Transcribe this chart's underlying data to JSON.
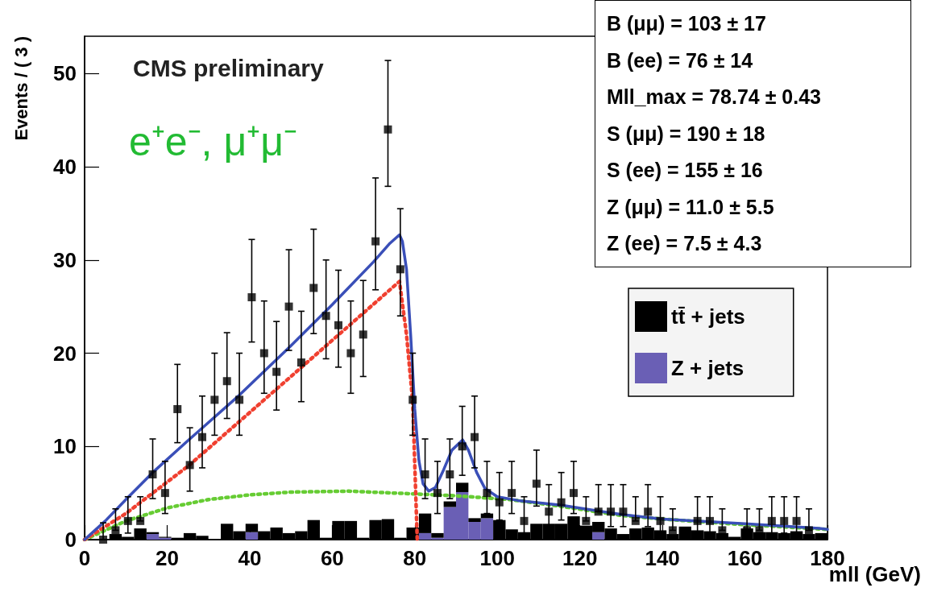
{
  "chart_data": {
    "type": "bar",
    "xlabel": "mll (GeV)",
    "ylabel": "Events / ( 3 )",
    "annotations": [
      "CMS preliminary",
      "e⁺e⁻, μ⁺μ⁻",
      "B (μμ) =  103 ± 17",
      "B (ee) =  76 ± 14",
      "Mll_max =  78.74 ± 0.43",
      "S (μμ) =  190 ± 18",
      "S (ee) =  155 ± 16",
      "Z (μμ) =  11.0 ± 5.5",
      "Z (ee) =  7.5 ± 4.3"
    ],
    "xlim": [
      0,
      180
    ],
    "xticks": [
      0,
      20,
      40,
      60,
      80,
      100,
      120,
      140,
      160,
      180
    ],
    "ylim": [
      0,
      54
    ],
    "yticks": [
      0,
      10,
      20,
      30,
      40,
      50
    ],
    "stacked": true,
    "legend": "right",
    "x": [
      1.5,
      4.5,
      7.5,
      10.5,
      13.5,
      16.5,
      19.5,
      22.5,
      25.5,
      28.5,
      31.5,
      34.5,
      37.5,
      40.5,
      43.5,
      46.5,
      49.5,
      52.5,
      55.5,
      58.5,
      61.5,
      64.5,
      67.5,
      70.5,
      73.5,
      76.5,
      79.5,
      82.5,
      85.5,
      88.5,
      91.5,
      94.5,
      97.5,
      100.5,
      103.5,
      106.5,
      109.5,
      112.5,
      115.5,
      118.5,
      121.5,
      124.5,
      127.5,
      130.5,
      133.5,
      136.5,
      139.5,
      142.5,
      145.5,
      148.5,
      151.5,
      154.5,
      157.5,
      160.5,
      163.5,
      166.5,
      169.5,
      172.5,
      175.5,
      178.5
    ],
    "series": [
      {
        "name": "Z + jets",
        "color": "#6a5fb5",
        "values": [
          0,
          0,
          0,
          0,
          0,
          0.6,
          0.2,
          0,
          0,
          0,
          0,
          0,
          0,
          0.8,
          0,
          0,
          0,
          0,
          0,
          0,
          0,
          0,
          0,
          0,
          0,
          0,
          0,
          0.7,
          0.2,
          3.5,
          5.1,
          1.9,
          2.3,
          0,
          0,
          0,
          0,
          0,
          0,
          0,
          0,
          0.8,
          0,
          0,
          0,
          0,
          0,
          0,
          0,
          0,
          0,
          0,
          0,
          0,
          0,
          0,
          0,
          0,
          0,
          0
        ]
      },
      {
        "name": "tt̄ + jets",
        "color": "#000000",
        "values": [
          0,
          null,
          0.6,
          0.3,
          1.2,
          0.2,
          0.1,
          0.2,
          0.7,
          0.4,
          null,
          1.7,
          0.9,
          0.9,
          0.9,
          1.3,
          0.7,
          0.9,
          2.1,
          0.2,
          2.0,
          2.0,
          0.2,
          2.1,
          2.2,
          0.2,
          1.3,
          2.1,
          0.5,
          0.6,
          1.0,
          0.4,
          0.5,
          2.1,
          1.1,
          0.8,
          1.7,
          1.7,
          1.7,
          2.5,
          1.5,
          1.1,
          1.2,
          0.6,
          1.2,
          1.3,
          1.0,
          0.6,
          1.4,
          1.0,
          0.9,
          0.7,
          0.3,
          1.2,
          0.8,
          0.8,
          0.7,
          0.9,
          0.6,
          0.7
        ]
      },
      {
        "type": "line",
        "color": "#66cc33",
        "line_style": "dotted",
        "x": [
          0,
          5,
          10,
          20,
          30,
          40,
          50,
          64,
          80,
          90,
          103,
          115,
          130,
          140,
          160,
          180
        ],
        "values": [
          0,
          1,
          2,
          3.4,
          4.3,
          4.8,
          5.1,
          5.2,
          4.9,
          4.7,
          4.3,
          3.6,
          2.6,
          2.2,
          1.6,
          1.1
        ]
      },
      {
        "type": "line",
        "color": "#f04030",
        "line_style": "dotted",
        "x": [
          0,
          10,
          25.4,
          50,
          76.3,
          77.1,
          78,
          79.5,
          80.6
        ],
        "values": [
          0,
          2.8,
          8,
          17.5,
          27.7,
          25,
          22,
          14.8,
          0
        ]
      },
      {
        "type": "line",
        "color": "#3a4fb8",
        "line_style": "solid",
        "x": [
          0,
          5,
          10,
          16.5,
          25,
          37.5,
          50,
          60,
          70,
          74,
          76.3,
          77,
          78,
          79,
          80,
          81,
          82,
          83.4,
          85,
          87,
          89,
          91.6,
          93,
          95,
          97,
          100,
          105,
          115.5,
          130,
          140,
          160,
          178,
          180
        ],
        "values": [
          0,
          2,
          4.3,
          7.2,
          10.6,
          15.5,
          20.8,
          25.2,
          29.8,
          31.8,
          32.7,
          32,
          29,
          22,
          14,
          8.5,
          6,
          5.2,
          5.6,
          7.5,
          9.6,
          10.7,
          9.6,
          7.2,
          5.5,
          4.6,
          4.2,
          3.7,
          2.7,
          2.2,
          1.7,
          1.2,
          1.1
        ]
      },
      {
        "type": "scatter",
        "color": "#000000",
        "marker": "square",
        "x": [
          4.5,
          7.5,
          10.5,
          13.5,
          16.5,
          19.5,
          22.5,
          25.5,
          28.5,
          31.5,
          34.5,
          37.5,
          40.5,
          43.5,
          46.5,
          49.5,
          52.5,
          55.5,
          58.5,
          61.5,
          64.5,
          67.5,
          70.5,
          73.5,
          76.5,
          79.5,
          82.5,
          85.5,
          88.5,
          91.5,
          94.5,
          97.5,
          100.5,
          103.5,
          106.5,
          109.5,
          112.5,
          115.5,
          118.5,
          121.5,
          124.5,
          127.5,
          130.5,
          133.5,
          136.5,
          139.5,
          142.5,
          148.5,
          151.5,
          154.5,
          160.5,
          163.5,
          166.5,
          169.5,
          172.5,
          175.5
        ],
        "values": [
          0,
          1,
          2,
          2,
          7,
          5,
          14,
          8,
          11,
          15,
          17,
          15,
          26,
          20,
          18,
          25,
          19,
          27,
          24,
          23,
          20,
          22,
          32,
          44,
          29,
          15,
          7,
          5,
          7,
          10,
          11,
          5,
          4,
          5,
          2,
          6,
          3,
          4,
          5,
          2,
          3,
          3,
          3,
          2,
          3,
          2,
          1,
          2,
          2,
          1,
          1,
          1,
          2,
          2,
          2,
          1
        ],
        "errors": [
          [
            0,
            1.8
          ],
          [
            1,
            3.3
          ],
          [
            0.7,
            4.6
          ],
          [
            2,
            4.6
          ],
          [
            4.4,
            10.8
          ],
          [
            2.8,
            8.4
          ],
          [
            10.4,
            18.8
          ],
          [
            5.2,
            12
          ],
          [
            7.7,
            15.4
          ],
          [
            11.2,
            20
          ],
          [
            13,
            22.2
          ],
          [
            11.2,
            20
          ],
          [
            21.2,
            32.2
          ],
          [
            15.7,
            25.6
          ],
          [
            13.9,
            23.4
          ],
          [
            20.3,
            31.1
          ],
          [
            14.8,
            24.5
          ],
          [
            22.1,
            33.3
          ],
          [
            19.4,
            30
          ],
          [
            18.5,
            28.9
          ],
          [
            15.7,
            25.6
          ],
          [
            17.5,
            27.8
          ],
          [
            26.8,
            38.8
          ],
          [
            37.9,
            51.4
          ],
          [
            24,
            35.5
          ],
          [
            11.2,
            20
          ],
          [
            4.4,
            10.8
          ],
          [
            2.8,
            8.4
          ],
          [
            4.4,
            10.8
          ],
          [
            6.9,
            14.3
          ],
          [
            7.7,
            15.4
          ],
          [
            2.8,
            8.4
          ],
          [
            2.1,
            7.2
          ],
          [
            2.8,
            8.4
          ],
          [
            0.7,
            4.6
          ],
          [
            3.6,
            9.6
          ],
          [
            1.4,
            5.9
          ],
          [
            2.1,
            7.2
          ],
          [
            2.8,
            8.4
          ],
          [
            2,
            4.6
          ],
          [
            3,
            5.9
          ],
          [
            1.4,
            5.9
          ],
          [
            1.4,
            5.9
          ],
          [
            2,
            4.6
          ],
          [
            1.4,
            5.9
          ],
          [
            0.7,
            4.6
          ],
          [
            1,
            3.3
          ],
          [
            0.7,
            4.6
          ],
          [
            0.7,
            4.6
          ],
          [
            1,
            3.3
          ],
          [
            1,
            3.3
          ],
          [
            1,
            3.3
          ],
          [
            0.7,
            4.6
          ],
          [
            0.7,
            4.6
          ],
          [
            0.7,
            4.6
          ],
          [
            1,
            3.3
          ]
        ]
      }
    ]
  }
}
